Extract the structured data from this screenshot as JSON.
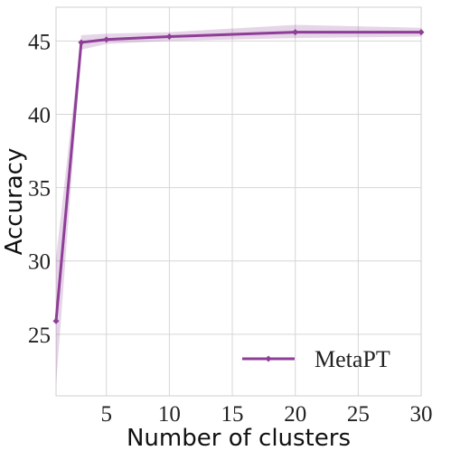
{
  "chart_data": {
    "type": "line",
    "xlabel": "Number of clusters",
    "ylabel": "Accuracy",
    "xlim": [
      1,
      30
    ],
    "ylim": [
      20.8,
      47.3
    ],
    "x_ticks": [
      5,
      10,
      15,
      20,
      25,
      30
    ],
    "y_ticks": [
      25,
      30,
      35,
      40,
      45
    ],
    "grid": true,
    "legend_position": "bottom-right",
    "series": [
      {
        "name": "MetaPT",
        "color": "#8e3e96",
        "x": [
          1,
          3,
          5,
          10,
          20,
          30
        ],
        "y": [
          25.9,
          44.9,
          45.1,
          45.3,
          45.6,
          45.6
        ],
        "y_lower": [
          21.5,
          44.4,
          44.8,
          45.0,
          45.2,
          45.3
        ],
        "y_upper": [
          30.2,
          45.4,
          45.5,
          45.6,
          46.1,
          45.9
        ]
      }
    ]
  }
}
